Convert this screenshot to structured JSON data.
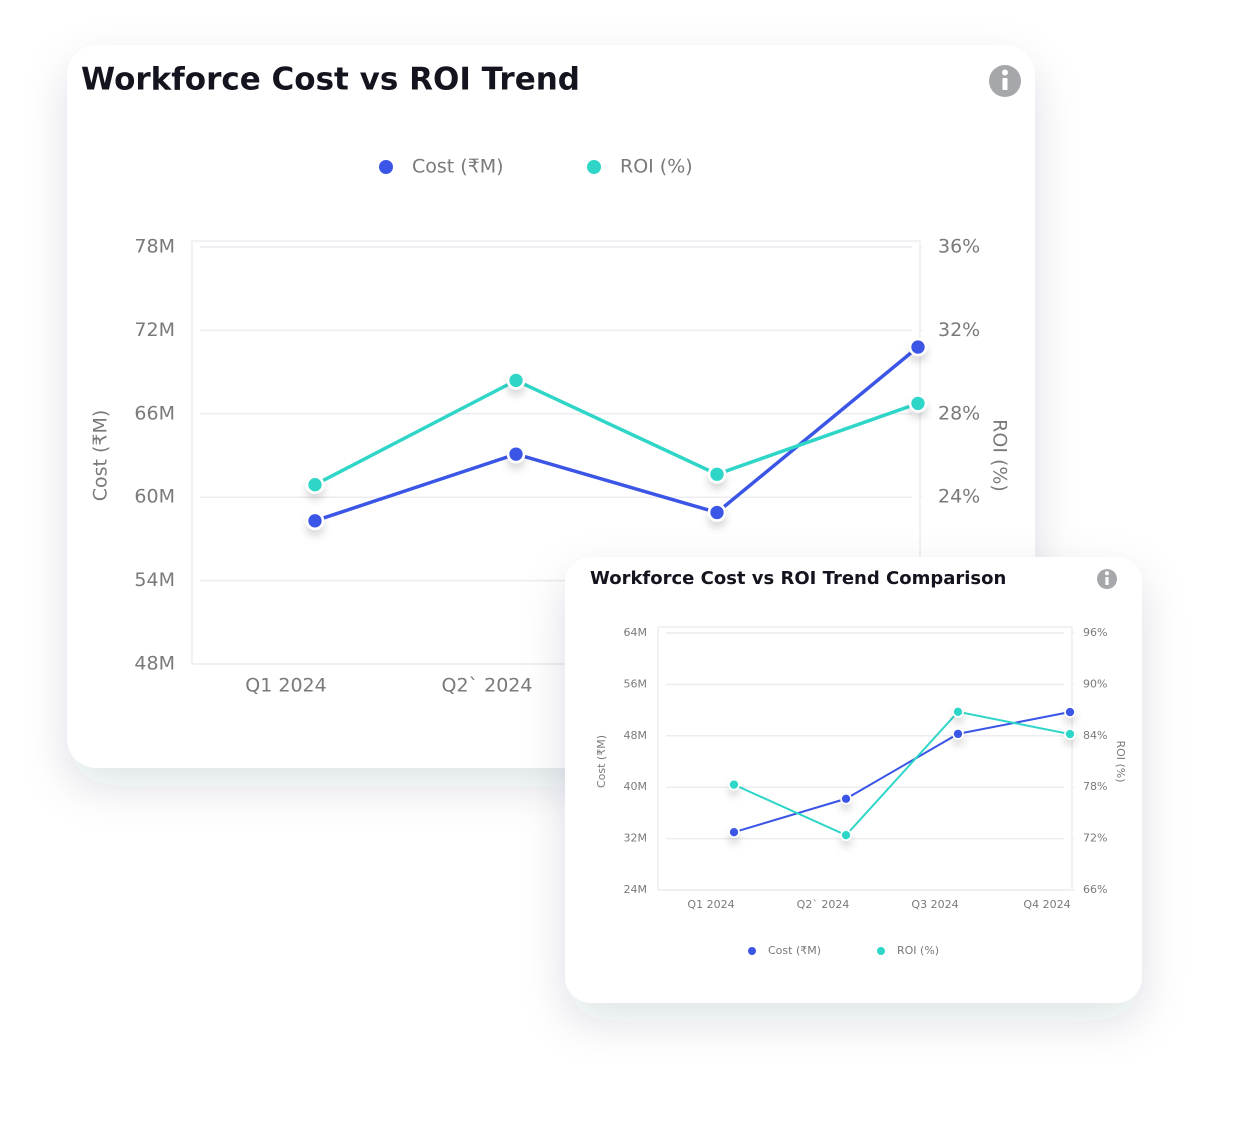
{
  "chart_data": [
    {
      "type": "line",
      "title": "Workforce Cost vs ROI Trend",
      "categories": [
        "Q1 2024",
        "Q2` 2024",
        null,
        null
      ],
      "series": [
        {
          "name": "Cost (₹M)",
          "color": "#3b55e6",
          "values": [
            58.3,
            63.1,
            58.9,
            70.8
          ]
        },
        {
          "name": "ROI (%)",
          "color": "#2fd6c8",
          "axis": "y2",
          "values": [
            24.6,
            29.6,
            25.1,
            28.5
          ]
        }
      ],
      "ylabel": "Cost (₹M)",
      "y2label": "ROI (%)",
      "ylim": [
        48,
        78
      ],
      "yticks": [
        {
          "value": 48,
          "label": "48M"
        },
        {
          "value": 54,
          "label": "54M"
        },
        {
          "value": 60,
          "label": "60M"
        },
        {
          "value": 66,
          "label": "66M"
        },
        {
          "value": 72,
          "label": "72M"
        },
        {
          "value": 78,
          "label": "78M"
        }
      ],
      "y2lim": [
        16,
        36
      ],
      "y2ticks": [
        {
          "value": 24,
          "label": "24%"
        },
        {
          "value": 28,
          "label": "28%"
        },
        {
          "value": 32,
          "label": "32%"
        },
        {
          "value": 36,
          "label": "36%"
        }
      ],
      "grid": true,
      "legend": "top"
    },
    {
      "type": "line",
      "title": "Workforce Cost vs ROI Trend  Comparison",
      "categories": [
        "Q1 2024",
        "Q2` 2024",
        "Q3 2024",
        "Q4 2024"
      ],
      "series": [
        {
          "name": "Cost (₹M)",
          "color": "#3b55e6",
          "values": [
            33,
            38.2,
            48.3,
            51.7
          ]
        },
        {
          "name": "ROI (%)",
          "color": "#2fd6c8",
          "axis": "y2",
          "values": [
            78.3,
            72.4,
            86.8,
            84.2
          ]
        }
      ],
      "ylabel": "Cost (₹M)",
      "y2label": "ROI (%)",
      "ylim": [
        24,
        64
      ],
      "yticks": [
        {
          "value": 24,
          "label": "24M"
        },
        {
          "value": 32,
          "label": "32M"
        },
        {
          "value": 40,
          "label": "40M"
        },
        {
          "value": 48,
          "label": "48M"
        },
        {
          "value": 56,
          "label": "56M"
        },
        {
          "value": 64,
          "label": "64M"
        }
      ],
      "y2lim": [
        66,
        96
      ],
      "y2ticks": [
        {
          "value": 66,
          "label": "66%"
        },
        {
          "value": 72,
          "label": "72%"
        },
        {
          "value": 78,
          "label": "78%"
        },
        {
          "value": 84,
          "label": "84%"
        },
        {
          "value": 90,
          "label": "90%"
        },
        {
          "value": 96,
          "label": "96%"
        }
      ],
      "grid": true,
      "legend": "bottom"
    }
  ]
}
